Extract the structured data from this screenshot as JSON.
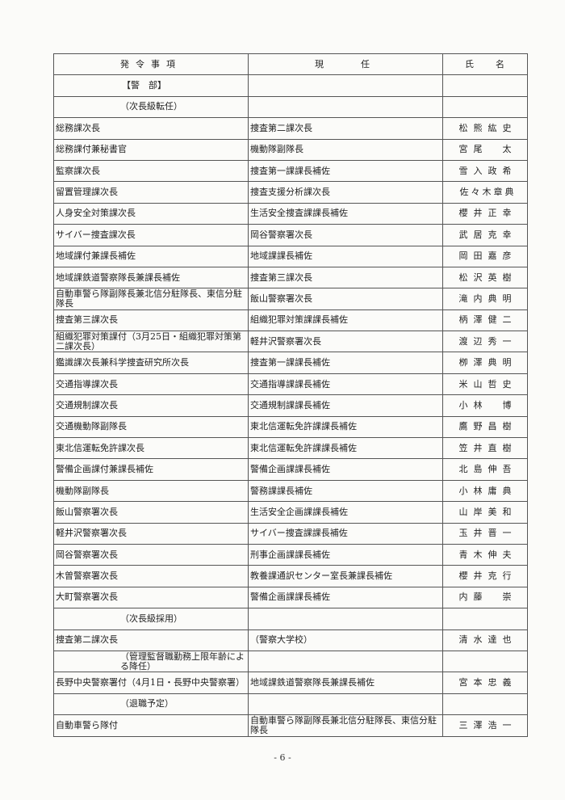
{
  "headers": [
    "発令事項",
    "現　　任",
    "氏　名"
  ],
  "rank_heading": "【警　部】",
  "sections": [
    {
      "title": "（次長級転任）",
      "rows": [
        [
          "総務課次長",
          "捜査第二課次長",
          "松熊紘史"
        ],
        [
          "総務課付兼秘書官",
          "機動隊副隊長",
          "宮尾　太"
        ],
        [
          "監察課次長",
          "捜査第一課課長補佐",
          "雪入政希"
        ],
        [
          "留置管理課次長",
          "捜査支援分析課次長",
          "佐々木章典"
        ],
        [
          "人身安全対策課次長",
          "生活安全捜査課課長補佐",
          "櫻井正幸"
        ],
        [
          "サイバー捜査課次長",
          "岡谷警察署次長",
          "武居克幸"
        ],
        [
          "地域課付兼課長補佐",
          "地域課課長補佐",
          "岡田嘉彦"
        ],
        [
          "地域課鉄道警察隊長兼課長補佐",
          "捜査第三課次長",
          "松沢英樹"
        ],
        [
          "自動車警ら隊副隊長兼北信分駐隊長、東信分駐隊長",
          "飯山警察署次長",
          "滝内典明"
        ],
        [
          "捜査第三課次長",
          "組織犯罪対策課課長補佐",
          "柄澤健二"
        ],
        [
          "組織犯罪対策課付（3月25日・組織犯罪対策第二課次長）",
          "軽井沢警察署次長",
          "渡辺秀一"
        ],
        [
          "鑑識課次長兼科学捜査研究所次長",
          "捜査第一課課長補佐",
          "栁澤典明"
        ],
        [
          "交通指導課次長",
          "交通指導課課長補佐",
          "米山哲史"
        ],
        [
          "交通規制課次長",
          "交通規制課課長補佐",
          "小林　博"
        ],
        [
          "交通機動隊副隊長",
          "東北信運転免許課課長補佐",
          "鷹野昌樹"
        ],
        [
          "東北信運転免許課次長",
          "東北信運転免許課課長補佐",
          "笠井直樹"
        ],
        [
          "警備企画課付兼課長補佐",
          "警備企画課課長補佐",
          "北島伸吾"
        ],
        [
          "機動隊副隊長",
          "警務課課長補佐",
          "小林庸典"
        ],
        [
          "飯山警察署次長",
          "生活安全企画課課長補佐",
          "山岸美和"
        ],
        [
          "軽井沢警察署次長",
          "サイバー捜査課課長補佐",
          "玉井晋一"
        ],
        [
          "岡谷警察署次長",
          "刑事企画課課長補佐",
          "青木伸夫"
        ],
        [
          "木曽警察署次長",
          "教養課通訳センター室長兼課長補佐",
          "櫻井克行"
        ],
        [
          "大町警察署次長",
          "警備企画課課長補佐",
          "内藤　崇"
        ]
      ]
    },
    {
      "title": "（次長級採用）",
      "rows": [
        [
          "捜査第二課次長",
          "（警察大学校）",
          "清水達也"
        ]
      ]
    },
    {
      "title": "（管理監督職勤務上限年齢による降任）",
      "rows": [
        [
          "長野中央警察署付（4月1日・長野中央警察署）",
          "地域課鉄道警察隊長兼課長補佐",
          "宮本忠義"
        ]
      ]
    },
    {
      "title": "（退職予定）",
      "rows": [
        [
          "自動車警ら隊付",
          "自動車警ら隊副隊長兼北信分駐隊長、東信分駐隊長",
          "三澤浩一"
        ]
      ]
    }
  ],
  "page_number": "- 6 -"
}
